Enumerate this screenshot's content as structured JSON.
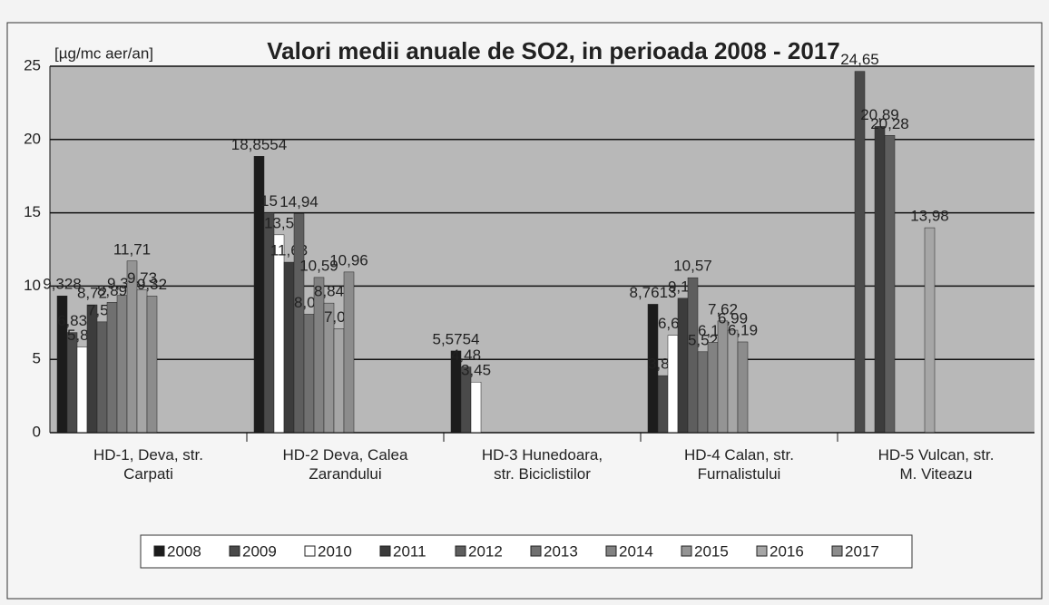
{
  "chart_data": {
    "type": "bar",
    "title": "Valori medii anuale de SO2, in perioada 2008 - 2017",
    "y_label": "[µg/mc aer/an]",
    "categories": [
      "HD-1, Deva, str. Carpati",
      "HD-2 Deva, Calea Zarandului",
      "HD-3 Hunedoara, str. Biciclistilor",
      "HD-4 Calan, str. Furnalistului",
      "HD-5 Vulcan, str. M. Viteazu"
    ],
    "ylim": [
      0,
      25
    ],
    "yticks": [
      0,
      5,
      10,
      15,
      20,
      25
    ],
    "grid": true,
    "legend": "bottom",
    "series": [
      {
        "name": "2008",
        "color": "#1c1c1c",
        "values": [
          9.328,
          18.8554,
          5.5754,
          8.7613,
          null
        ],
        "value_labels": [
          "9,328",
          "18,8554",
          "5,5754",
          "8,7613",
          null
        ]
      },
      {
        "name": "2009",
        "color": "#4a4a4a",
        "values": [
          6.83,
          15,
          4.48,
          3.89,
          24.65
        ],
        "value_labels": [
          "6,83",
          "15",
          "4,48",
          "3,89",
          "24,65"
        ]
      },
      {
        "name": "2010",
        "color": "#ffffff",
        "values": [
          5.84,
          13.5,
          3.45,
          6.64,
          null
        ],
        "value_labels": [
          "5,84",
          "13,5",
          "3,45",
          "6,64",
          null
        ]
      },
      {
        "name": "2011",
        "color": "#3c3c3c",
        "values": [
          8.72,
          11.63,
          null,
          9.17,
          20.89
        ],
        "value_labels": [
          "8,72",
          "11,63",
          null,
          "9,17",
          "20,89"
        ]
      },
      {
        "name": "2012",
        "color": "#5e5e5e",
        "values": [
          7.56,
          14.94,
          null,
          10.57,
          20.28
        ],
        "value_labels": [
          "7,56",
          "14,94",
          null,
          "10,57",
          "20,28"
        ]
      },
      {
        "name": "2013",
        "color": "#707070",
        "values": [
          8.89,
          8.08,
          null,
          5.52,
          null
        ],
        "value_labels": [
          "8,89",
          "8,08",
          null,
          "5,52",
          null
        ]
      },
      {
        "name": "2014",
        "color": "#828282",
        "values": [
          9.36,
          10.59,
          null,
          6.16,
          null
        ],
        "value_labels": [
          "9,36",
          "10,59",
          null,
          "6,16",
          null
        ]
      },
      {
        "name": "2015",
        "color": "#949494",
        "values": [
          11.71,
          8.84,
          null,
          7.62,
          null
        ],
        "value_labels": [
          "11,71",
          "8,84",
          null,
          "7,62",
          null
        ]
      },
      {
        "name": "2016",
        "color": "#a6a6a6",
        "values": [
          9.73,
          7.09,
          null,
          6.99,
          13.98
        ],
        "value_labels": [
          "9,73",
          "7,09",
          null,
          "6,99",
          "13,98"
        ]
      },
      {
        "name": "2017",
        "color": "#8c8c8c",
        "values": [
          9.32,
          10.96,
          null,
          6.19,
          null
        ],
        "value_labels": [
          "9,32",
          "10,96",
          null,
          "6,19",
          null
        ]
      }
    ]
  }
}
